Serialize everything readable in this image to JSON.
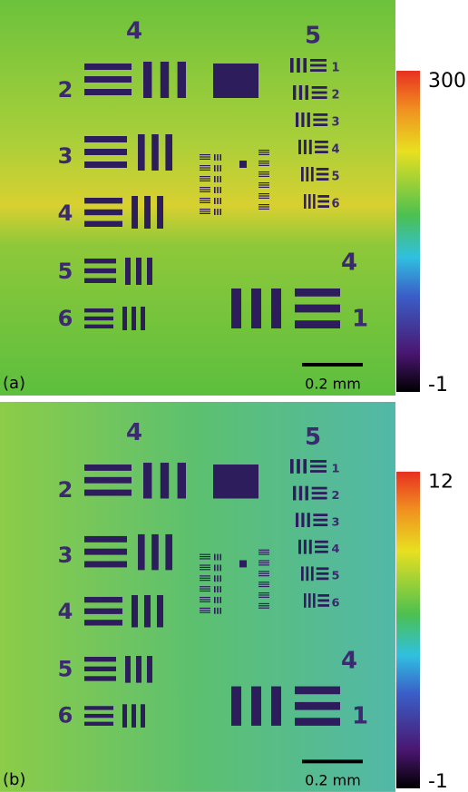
{
  "panels": [
    {
      "label": "(a)",
      "scale_bar": "0.2 mm",
      "colorbar": {
        "max": 300,
        "min": -1
      },
      "group_labels": [
        "4",
        "5",
        "4"
      ],
      "left_elements": [
        "2",
        "3",
        "4",
        "5",
        "6"
      ],
      "right_elements": [
        "1",
        "2",
        "3",
        "4",
        "5",
        "6"
      ],
      "big_element": "1"
    },
    {
      "label": "(b)",
      "scale_bar": "0.2 mm",
      "colorbar": {
        "max": 12,
        "min": -1
      },
      "group_labels": [
        "4",
        "5",
        "4"
      ],
      "left_elements": [
        "2",
        "3",
        "4",
        "5",
        "6"
      ],
      "right_elements": [
        "1",
        "2",
        "3",
        "4",
        "5",
        "6"
      ],
      "big_element": "1"
    }
  ]
}
